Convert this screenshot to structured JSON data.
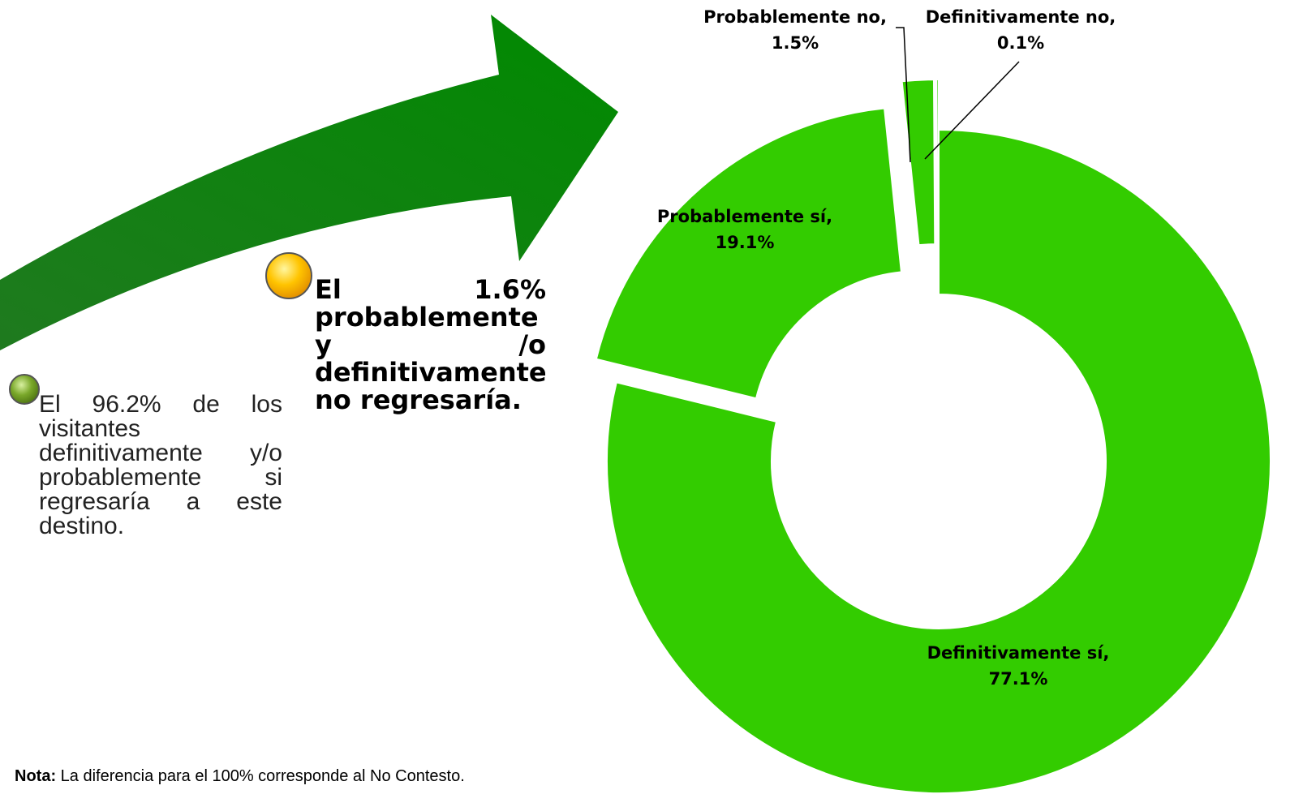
{
  "chart_data": {
    "type": "donut",
    "categories": [
      "Definitivamente sí,",
      "Probablemente sí,",
      "Probablemente no,",
      "Definitivamente no,"
    ],
    "values": [
      77.1,
      19.1,
      1.5,
      0.1
    ],
    "value_labels": [
      "77.1%",
      "19.1%",
      "1.5%",
      "0.1%"
    ],
    "color": "#33cc00"
  },
  "annotations": {
    "positive": "El 96.2% de los visitantes definitivamente y/o probablemente si regresaría a este destino.",
    "negative": "El 1.6% probablemente y /o definitivamente no regresaría."
  },
  "note": {
    "label": "Nota:",
    "text": "La diferencia para el 100% corresponde al No Contesto."
  }
}
